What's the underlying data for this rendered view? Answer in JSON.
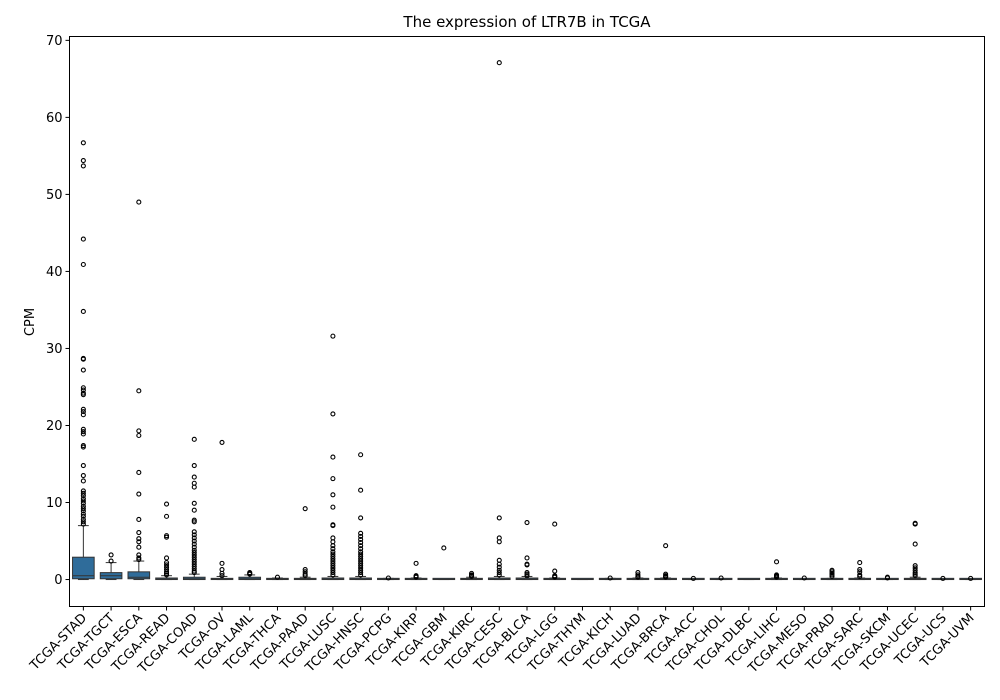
{
  "chart_data": {
    "type": "box",
    "title": "The expression of LTR7B in TCGA",
    "xlabel": "",
    "ylabel": "CPM",
    "ylim": [
      -3.5,
      70.5
    ],
    "yticks": [
      0,
      10,
      20,
      30,
      40,
      50,
      60,
      70
    ],
    "grid": false,
    "legend": "none",
    "box_color": "#2f6c9a",
    "categories": [
      "TCGA-STAD",
      "TCGA-TGCT",
      "TCGA-ESCA",
      "TCGA-READ",
      "TCGA-COAD",
      "TCGA-OV",
      "TCGA-LAML",
      "TCGA-THCA",
      "TCGA-PAAD",
      "TCGA-LUSC",
      "TCGA-HNSC",
      "TCGA-PCPG",
      "TCGA-KIRP",
      "TCGA-GBM",
      "TCGA-KIRC",
      "TCGA-CESC",
      "TCGA-BLCA",
      "TCGA-LGG",
      "TCGA-THYM",
      "TCGA-KICH",
      "TCGA-LUAD",
      "TCGA-BRCA",
      "TCGA-ACC",
      "TCGA-CHOL",
      "TCGA-DLBC",
      "TCGA-LIHC",
      "TCGA-MESO",
      "TCGA-PRAD",
      "TCGA-SARC",
      "TCGA-SKCM",
      "TCGA-UCEC",
      "TCGA-UCS",
      "TCGA-UVM"
    ],
    "boxes": [
      {
        "whisker_low": 0,
        "q1": 0.1,
        "median": 0.5,
        "q3": 2.9,
        "whisker_high": 7.0,
        "outliers": [
          56.7,
          54.4,
          53.7,
          44.2,
          40.9,
          34.8,
          28.7,
          28.6,
          27.2,
          24.9,
          24.6,
          24.2,
          24.0,
          22.1,
          21.8,
          21.4,
          19.5,
          19.2,
          18.9,
          17.4,
          17.2,
          14.8,
          13.5,
          12.8,
          11.5,
          11.2,
          10.9,
          10.5,
          10.2,
          9.9,
          9.5,
          9.2,
          8.9,
          8.5,
          8.2,
          7.8,
          7.5,
          7.2
        ]
      },
      {
        "whisker_low": 0,
        "q1": 0.1,
        "median": 0.5,
        "q3": 0.9,
        "whisker_high": 2.2,
        "outliers": [
          3.2,
          2.4
        ]
      },
      {
        "whisker_low": 0,
        "q1": 0.1,
        "median": 0.3,
        "q3": 1.0,
        "whisker_high": 2.4,
        "outliers": [
          49.0,
          24.5,
          19.3,
          18.7,
          13.9,
          11.1,
          7.8,
          6.1,
          5.3,
          4.9,
          4.2,
          3.2,
          2.8,
          2.6
        ]
      },
      {
        "whisker_low": 0,
        "q1": 0.0,
        "median": 0.05,
        "q3": 0.2,
        "whisker_high": 0.5,
        "outliers": [
          9.8,
          8.2,
          5.7,
          5.5,
          2.8,
          2.2,
          1.9,
          1.6,
          1.3,
          1.0,
          0.8,
          0.6
        ]
      },
      {
        "whisker_low": 0,
        "q1": 0.0,
        "median": 0.1,
        "q3": 0.3,
        "whisker_high": 0.7,
        "outliers": [
          18.2,
          14.8,
          13.3,
          12.5,
          12.0,
          9.9,
          9.0,
          7.7,
          7.5,
          6.2,
          5.8,
          5.4,
          5.0,
          4.6,
          4.2,
          3.8,
          3.5,
          3.2,
          2.9,
          2.6,
          2.3,
          2.0,
          1.7,
          1.4,
          1.1,
          0.9
        ]
      },
      {
        "whisker_low": 0,
        "q1": 0.0,
        "median": 0.05,
        "q3": 0.15,
        "whisker_high": 0.4,
        "outliers": [
          17.8,
          2.1,
          1.3,
          0.8,
          0.5
        ]
      },
      {
        "whisker_low": 0,
        "q1": 0.0,
        "median": 0.1,
        "q3": 0.3,
        "whisker_high": 0.6,
        "outliers": [
          0.9,
          0.8,
          0.7
        ]
      },
      {
        "whisker_low": 0,
        "q1": 0.0,
        "median": 0.05,
        "q3": 0.1,
        "whisker_high": 0.2,
        "outliers": [
          0.3
        ]
      },
      {
        "whisker_low": 0,
        "q1": 0.0,
        "median": 0.05,
        "q3": 0.15,
        "whisker_high": 0.3,
        "outliers": [
          9.2,
          1.3,
          1.0,
          0.7,
          0.5
        ]
      },
      {
        "whisker_low": 0,
        "q1": 0.0,
        "median": 0.05,
        "q3": 0.2,
        "whisker_high": 0.4,
        "outliers": [
          31.6,
          21.5,
          15.9,
          13.1,
          11.0,
          9.4,
          7.1,
          7.0,
          5.4,
          4.9,
          4.4,
          4.0,
          3.6,
          3.3,
          3.0,
          2.7,
          2.4,
          2.1,
          1.8,
          1.5,
          1.2,
          0.9,
          0.6
        ]
      },
      {
        "whisker_low": 0,
        "q1": 0.0,
        "median": 0.05,
        "q3": 0.2,
        "whisker_high": 0.4,
        "outliers": [
          16.2,
          11.6,
          8.0,
          6.0,
          5.6,
          5.2,
          4.8,
          4.4,
          4.0,
          3.6,
          3.3,
          3.0,
          2.7,
          2.4,
          2.1,
          1.8,
          1.5,
          1.2,
          0.9,
          0.6
        ]
      },
      {
        "whisker_low": 0,
        "q1": 0.0,
        "median": 0.03,
        "q3": 0.08,
        "whisker_high": 0.15,
        "outliers": [
          0.2
        ]
      },
      {
        "whisker_low": 0,
        "q1": 0.0,
        "median": 0.03,
        "q3": 0.1,
        "whisker_high": 0.2,
        "outliers": [
          2.1,
          0.5,
          0.4,
          0.3
        ]
      },
      {
        "whisker_low": 0,
        "q1": 0.0,
        "median": 0.02,
        "q3": 0.05,
        "whisker_high": 0.1,
        "outliers": [
          4.1
        ]
      },
      {
        "whisker_low": 0,
        "q1": 0.0,
        "median": 0.05,
        "q3": 0.15,
        "whisker_high": 0.3,
        "outliers": [
          0.8,
          0.6,
          0.5,
          0.4
        ]
      },
      {
        "whisker_low": 0,
        "q1": 0.0,
        "median": 0.05,
        "q3": 0.2,
        "whisker_high": 0.4,
        "outliers": [
          67.1,
          8.0,
          5.4,
          4.9,
          2.5,
          2.0,
          1.6,
          1.2,
          0.9,
          0.6
        ]
      },
      {
        "whisker_low": 0,
        "q1": 0.0,
        "median": 0.05,
        "q3": 0.2,
        "whisker_high": 0.4,
        "outliers": [
          7.4,
          2.8,
          2.0,
          1.9,
          0.9,
          0.7,
          0.5
        ]
      },
      {
        "whisker_low": 0,
        "q1": 0.0,
        "median": 0.03,
        "q3": 0.1,
        "whisker_high": 0.2,
        "outliers": [
          7.2,
          1.1,
          0.5,
          0.4,
          0.3
        ]
      },
      {
        "whisker_low": 0,
        "q1": 0.0,
        "median": 0.02,
        "q3": 0.05,
        "whisker_high": 0.1,
        "outliers": []
      },
      {
        "whisker_low": 0,
        "q1": 0.0,
        "median": 0.03,
        "q3": 0.08,
        "whisker_high": 0.15,
        "outliers": [
          0.2
        ]
      },
      {
        "whisker_low": 0,
        "q1": 0.0,
        "median": 0.03,
        "q3": 0.1,
        "whisker_high": 0.2,
        "outliers": [
          0.9,
          0.6,
          0.4,
          0.3
        ]
      },
      {
        "whisker_low": 0,
        "q1": 0.0,
        "median": 0.03,
        "q3": 0.1,
        "whisker_high": 0.2,
        "outliers": [
          4.4,
          0.7,
          0.5,
          0.4,
          0.3
        ]
      },
      {
        "whisker_low": 0,
        "q1": 0.0,
        "median": 0.02,
        "q3": 0.05,
        "whisker_high": 0.1,
        "outliers": [
          0.15
        ]
      },
      {
        "whisker_low": 0,
        "q1": 0.0,
        "median": 0.02,
        "q3": 0.06,
        "whisker_high": 0.12,
        "outliers": [
          0.2
        ]
      },
      {
        "whisker_low": 0,
        "q1": 0.0,
        "median": 0.02,
        "q3": 0.05,
        "whisker_high": 0.1,
        "outliers": []
      },
      {
        "whisker_low": 0,
        "q1": 0.0,
        "median": 0.03,
        "q3": 0.1,
        "whisker_high": 0.2,
        "outliers": [
          2.3,
          0.6,
          0.5,
          0.4,
          0.3
        ]
      },
      {
        "whisker_low": 0,
        "q1": 0.0,
        "median": 0.02,
        "q3": 0.05,
        "whisker_high": 0.1,
        "outliers": [
          0.2
        ]
      },
      {
        "whisker_low": 0,
        "q1": 0.0,
        "median": 0.03,
        "q3": 0.08,
        "whisker_high": 0.15,
        "outliers": [
          1.2,
          1.0,
          0.8,
          0.6,
          0.4
        ]
      },
      {
        "whisker_low": 0,
        "q1": 0.0,
        "median": 0.03,
        "q3": 0.1,
        "whisker_high": 0.2,
        "outliers": [
          2.2,
          1.3,
          1.0,
          0.6,
          0.4
        ]
      },
      {
        "whisker_low": 0,
        "q1": 0.0,
        "median": 0.02,
        "q3": 0.06,
        "whisker_high": 0.12,
        "outliers": [
          0.3,
          0.2
        ]
      },
      {
        "whisker_low": 0,
        "q1": 0.0,
        "median": 0.05,
        "q3": 0.15,
        "whisker_high": 0.3,
        "outliers": [
          7.3,
          7.2,
          4.6,
          1.8,
          1.5,
          1.2,
          0.9,
          0.7,
          0.5
        ]
      },
      {
        "whisker_low": 0,
        "q1": 0.0,
        "median": 0.02,
        "q3": 0.05,
        "whisker_high": 0.1,
        "outliers": [
          0.15
        ]
      },
      {
        "whisker_low": 0,
        "q1": 0.0,
        "median": 0.02,
        "q3": 0.05,
        "whisker_high": 0.1,
        "outliers": [
          0.15
        ]
      }
    ]
  }
}
